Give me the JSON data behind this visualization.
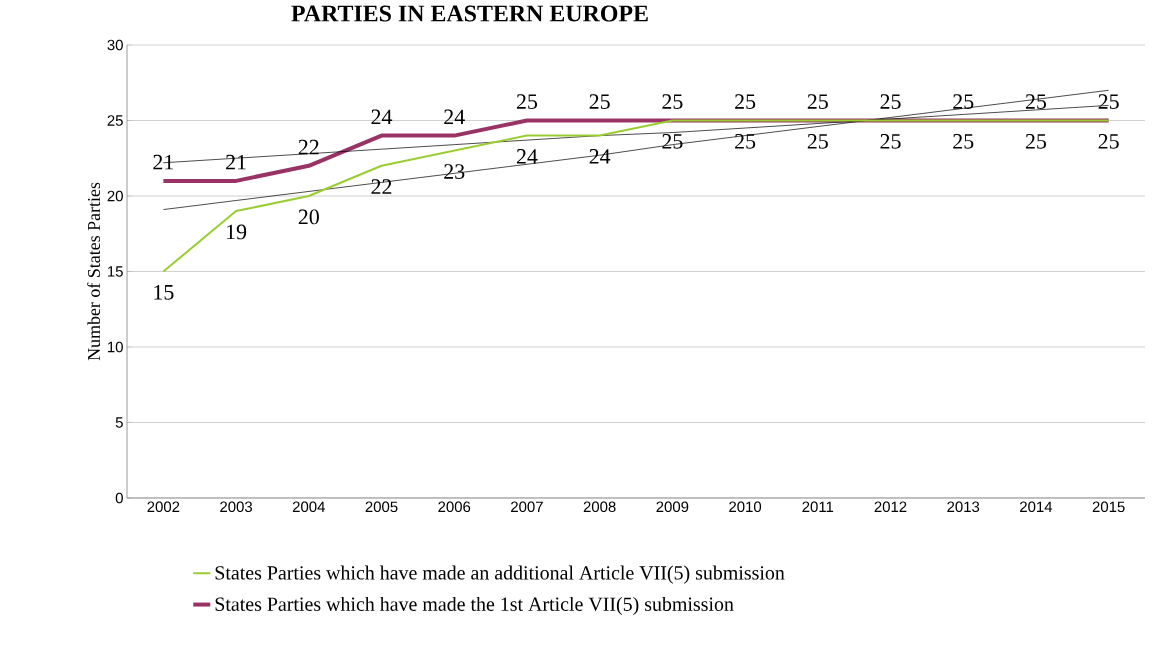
{
  "chart_data": {
    "type": "line",
    "title": "PARTIES IN EASTERN EUROPE",
    "ylabel": "Number of States Parties",
    "categories": [
      "2002",
      "2003",
      "2004",
      "2005",
      "2006",
      "2007",
      "2008",
      "2009",
      "2010",
      "2011",
      "2012",
      "2013",
      "2014",
      "2015"
    ],
    "series": [
      {
        "name": "States Parties which have made an additional Article VII(5) submission",
        "color": "#9acd32",
        "values": [
          15,
          19,
          20,
          22,
          23,
          24,
          24,
          25,
          25,
          25,
          25,
          25,
          25,
          25
        ],
        "value_labels": [
          "15",
          "19",
          "20",
          "22",
          "23",
          "24",
          "24",
          "25",
          "25",
          "25",
          "25",
          "25",
          "25",
          "25"
        ]
      },
      {
        "name": "States Parties which have made the 1st Article VII(5) submission",
        "color": "#993366",
        "values": [
          21,
          21,
          22,
          24,
          24,
          25,
          25,
          25,
          25,
          25,
          25,
          25,
          25,
          25
        ],
        "value_labels": [
          "21",
          "21",
          "22",
          "24",
          "24",
          "25",
          "25",
          "25",
          "25",
          "25",
          "25",
          "25",
          "25",
          "25"
        ]
      },
      {
        "type": "line",
        "color": "#000000",
        "values": [
          19.1,
          19.7,
          20.3,
          20.9,
          21.5,
          22.1,
          22.7,
          23.4,
          24.0,
          24.6,
          25.2,
          25.8,
          26.4,
          27.0
        ]
      },
      {
        "type": "line",
        "color": "#000000",
        "values": [
          22.2,
          22.5,
          22.8,
          23.1,
          23.4,
          23.7,
          24.0,
          24.2,
          24.5,
          24.8,
          25.1,
          25.4,
          25.7,
          26.0
        ]
      }
    ],
    "ylim": [
      0,
      30
    ],
    "yticks": [
      0,
      5,
      10,
      15,
      20,
      25,
      30
    ],
    "grid": "y",
    "legend": "bottom"
  }
}
